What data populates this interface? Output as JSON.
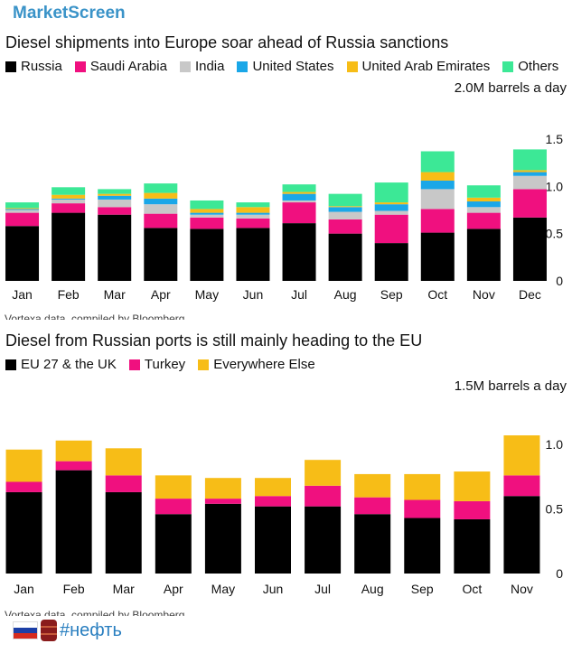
{
  "brand": "MarketScreen",
  "footer": {
    "hashtag": "#нефть",
    "flag_icon": "russia-flag-icon",
    "barrel_icon": "oil-barrel-icon"
  },
  "chart_data": [
    {
      "type": "bar",
      "stacked": true,
      "title": "Diesel shipments into Europe soar ahead of Russia sanctions",
      "unit_label": "2.0M barrels a day",
      "source": "Vortexa data, compiled by Bloomberg",
      "categories": [
        "Jan",
        "Feb",
        "Mar",
        "Apr",
        "May",
        "Jun",
        "Jul",
        "Aug",
        "Sep",
        "Oct",
        "Nov",
        "Dec"
      ],
      "ylim": [
        0,
        1.9
      ],
      "yticks": [
        "0",
        "0.5",
        "1.0",
        "1.5"
      ],
      "series": [
        {
          "name": "Russia",
          "color": "#000000",
          "values": [
            0.58,
            0.72,
            0.7,
            0.56,
            0.55,
            0.56,
            0.61,
            0.5,
            0.4,
            0.51,
            0.55,
            0.67
          ]
        },
        {
          "name": "Saudi Arabia",
          "color": "#f0107f",
          "values": [
            0.14,
            0.1,
            0.08,
            0.15,
            0.12,
            0.1,
            0.22,
            0.15,
            0.3,
            0.25,
            0.17,
            0.3
          ]
        },
        {
          "name": "India",
          "color": "#c8c8c8",
          "values": [
            0.03,
            0.04,
            0.08,
            0.1,
            0.03,
            0.04,
            0.02,
            0.08,
            0.04,
            0.21,
            0.06,
            0.14
          ]
        },
        {
          "name": "United States",
          "color": "#1aa7e8",
          "values": [
            0.01,
            0.01,
            0.04,
            0.06,
            0.02,
            0.02,
            0.07,
            0.05,
            0.07,
            0.09,
            0.06,
            0.04
          ]
        },
        {
          "name": "United Arab Emirates",
          "color": "#f7bd17",
          "values": [
            0.01,
            0.04,
            0.02,
            0.06,
            0.04,
            0.06,
            0.02,
            0.01,
            0.02,
            0.09,
            0.04,
            0.02
          ]
        },
        {
          "name": "Others",
          "color": "#3ce896",
          "values": [
            0.06,
            0.08,
            0.05,
            0.1,
            0.09,
            0.05,
            0.08,
            0.13,
            0.21,
            0.22,
            0.13,
            0.22
          ]
        }
      ]
    },
    {
      "type": "bar",
      "stacked": true,
      "title": "Diesel from Russian ports is still mainly heading to the EU",
      "unit_label": "1.5M barrels a day",
      "source": "Vortexa data, compiled by Bloomberg",
      "categories": [
        "Jan",
        "Feb",
        "Mar",
        "Apr",
        "May",
        "Jun",
        "Jul",
        "Aug",
        "Sep",
        "Oct",
        "Nov"
      ],
      "ylim": [
        0,
        1.35
      ],
      "yticks": [
        "0",
        "0.5",
        "1.0"
      ],
      "series": [
        {
          "name": "EU 27 & the UK",
          "color": "#000000",
          "values": [
            0.63,
            0.8,
            0.63,
            0.46,
            0.54,
            0.52,
            0.52,
            0.46,
            0.43,
            0.42,
            0.6
          ]
        },
        {
          "name": "Turkey",
          "color": "#f0107f",
          "values": [
            0.08,
            0.07,
            0.13,
            0.12,
            0.04,
            0.08,
            0.16,
            0.13,
            0.14,
            0.14,
            0.16
          ]
        },
        {
          "name": "Everywhere Else",
          "color": "#f7bd17",
          "values": [
            0.25,
            0.16,
            0.21,
            0.18,
            0.16,
            0.14,
            0.2,
            0.18,
            0.2,
            0.23,
            0.31
          ]
        }
      ]
    }
  ]
}
